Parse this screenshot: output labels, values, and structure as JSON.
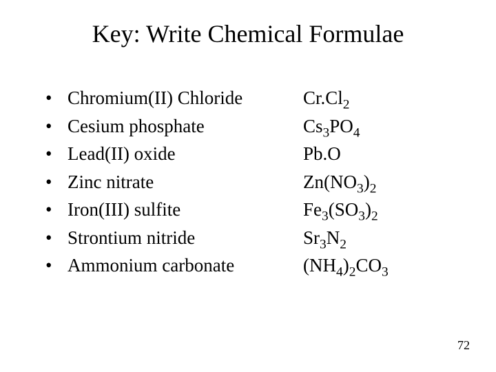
{
  "title": "Key: Write Chemical Formulae",
  "page_number": "72",
  "bullet_char": "•",
  "names": [
    "Chromium(II) Chloride",
    "Cesium phosphate",
    "Lead(II) oxide",
    "Zinc nitrate",
    "Iron(III) sulfite",
    "Strontium nitride",
    "Ammonium carbonate"
  ],
  "formulas": [
    [
      {
        "t": "Cr.Cl"
      },
      {
        "t": "2",
        "sub": true
      }
    ],
    [
      {
        "t": "Cs"
      },
      {
        "t": "3",
        "sub": true
      },
      {
        "t": "PO"
      },
      {
        "t": "4",
        "sub": true
      }
    ],
    [
      {
        "t": "Pb.O"
      }
    ],
    [
      {
        "t": "Zn(NO"
      },
      {
        "t": "3",
        "sub": true
      },
      {
        "t": ")"
      },
      {
        "t": "2",
        "sub": true
      }
    ],
    [
      {
        "t": "Fe"
      },
      {
        "t": "3",
        "sub": true
      },
      {
        "t": "(SO"
      },
      {
        "t": "3",
        "sub": true
      },
      {
        "t": ")"
      },
      {
        "t": "2",
        "sub": true
      }
    ],
    [
      {
        "t": "Sr"
      },
      {
        "t": "3",
        "sub": true
      },
      {
        "t": "N"
      },
      {
        "t": "2",
        "sub": true
      }
    ],
    [
      {
        "t": "(NH"
      },
      {
        "t": "4",
        "sub": true
      },
      {
        "t": ")"
      },
      {
        "t": "2",
        "sub": true
      },
      {
        "t": "CO"
      },
      {
        "t": "3",
        "sub": true
      }
    ]
  ],
  "colors": {
    "background": "#ffffff",
    "text": "#000000"
  },
  "typography": {
    "title_fontsize": 36,
    "body_fontsize": 27,
    "pagenum_fontsize": 18,
    "font_family": "Times New Roman"
  }
}
